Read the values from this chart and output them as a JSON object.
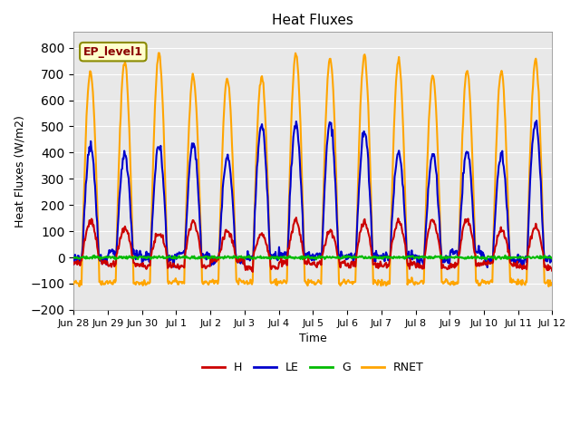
{
  "title": "Heat Fluxes",
  "ylabel": "Heat Fluxes (W/m2)",
  "xlabel": "Time",
  "annotation": "EP_level1",
  "ylim": [
    -200,
    860
  ],
  "yticks": [
    -200,
    -100,
    0,
    100,
    200,
    300,
    400,
    500,
    600,
    700,
    800
  ],
  "colors": {
    "H": "#cc0000",
    "LE": "#0000cc",
    "G": "#00bb00",
    "RNET": "#ffa500"
  },
  "bg_color": "#e8e8e8",
  "line_width": 1.5,
  "xticklabels": [
    "Jun 28",
    "Jun 29",
    "Jun 30",
    "Jul 1",
    "Jul 2",
    "Jul 3",
    "Jul 4",
    "Jul 5",
    "Jul 6",
    "Jul 7",
    "Jul 8",
    "Jul 9",
    "Jul 10",
    "Jul 11",
    "Jul 12"
  ],
  "n_days": 15,
  "samples_per_day": 48
}
